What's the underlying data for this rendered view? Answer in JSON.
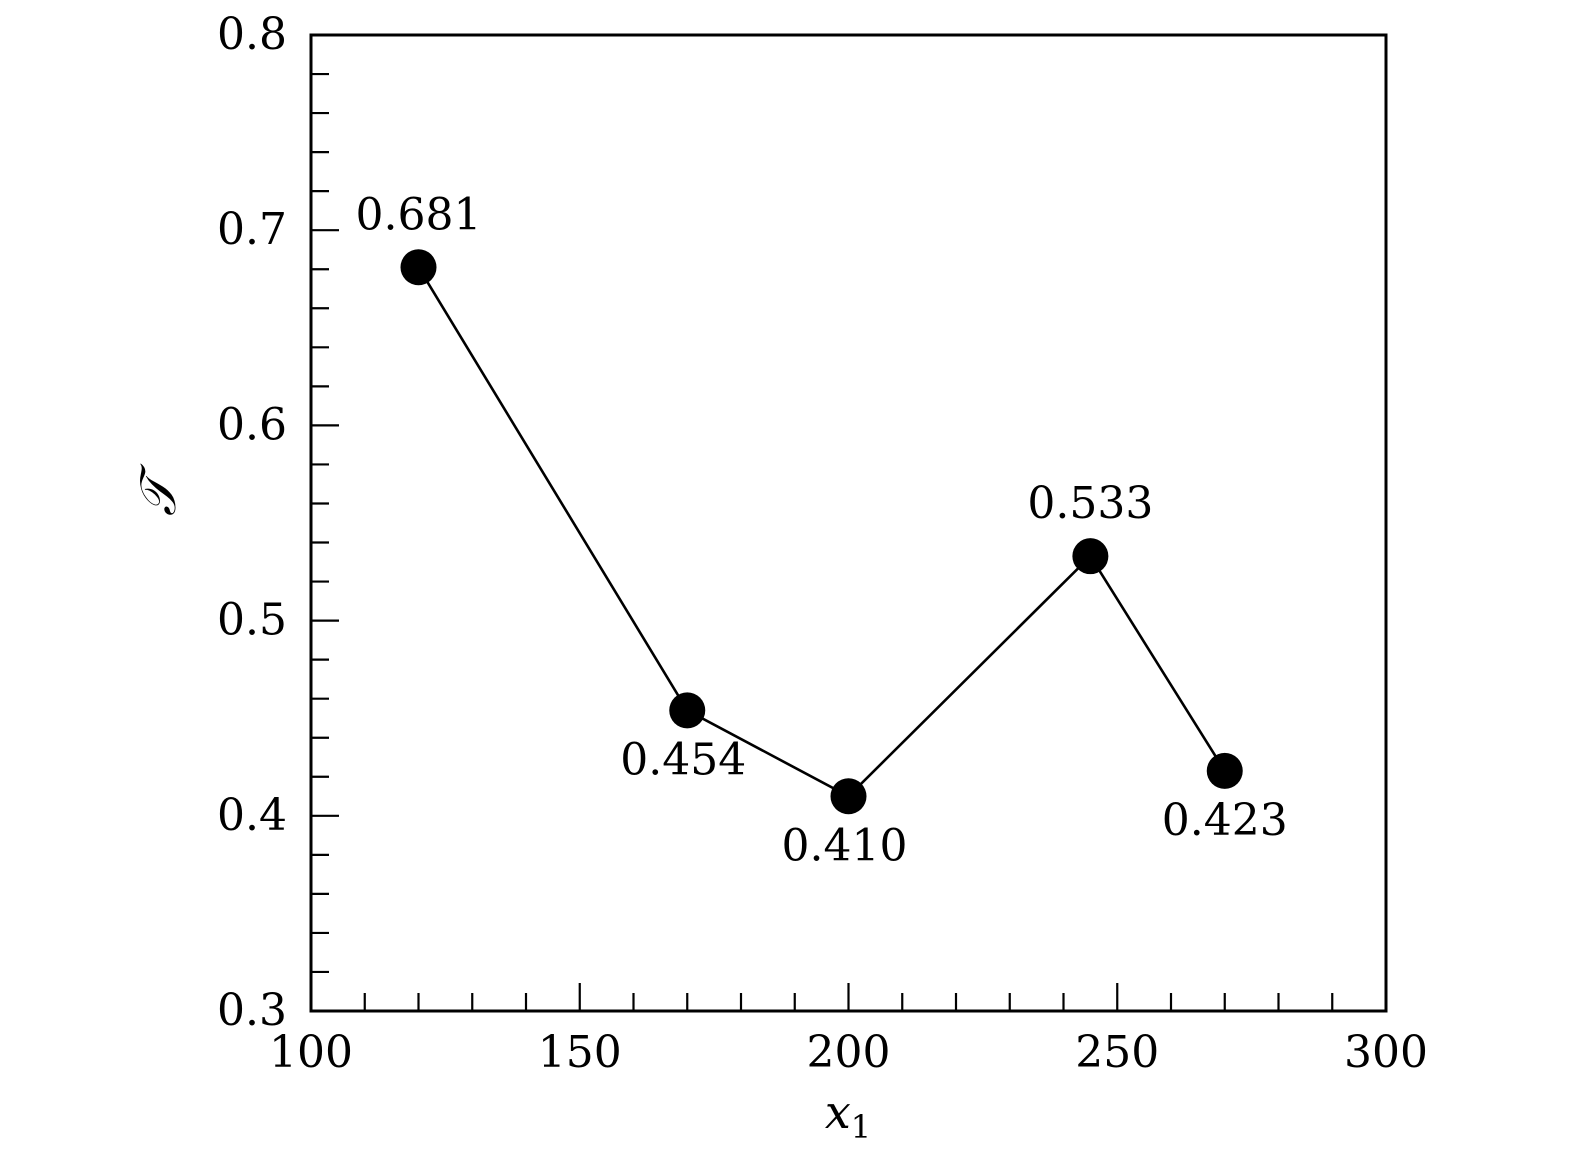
{
  "chart_data": {
    "type": "line",
    "x": [
      120,
      170,
      200,
      245,
      270
    ],
    "series": [
      {
        "values": [
          0.681,
          0.454,
          0.41,
          0.533,
          0.423
        ]
      }
    ],
    "data_labels": [
      "0.681",
      "0.454",
      "0.410",
      "0.533",
      "0.423"
    ],
    "xlabel": "x",
    "xlabel_subscript": "1",
    "ylabel": "𝒯",
    "xlim": [
      100,
      300
    ],
    "ylim": [
      0.3,
      0.8
    ],
    "x_ticks": [
      100,
      150,
      200,
      250,
      300
    ],
    "x_tick_labels": [
      "100",
      "150",
      "200",
      "250",
      "300"
    ],
    "y_ticks": [
      0.3,
      0.4,
      0.5,
      0.6,
      0.7,
      0.8
    ],
    "y_tick_labels": [
      "0.3",
      "0.4",
      "0.5",
      "0.6",
      "0.7",
      "0.8"
    ],
    "x_minor_step": 10,
    "y_minor_step": 0.02,
    "grid": false,
    "legend": "none",
    "marker": "filled-circle",
    "color": "#000000"
  }
}
